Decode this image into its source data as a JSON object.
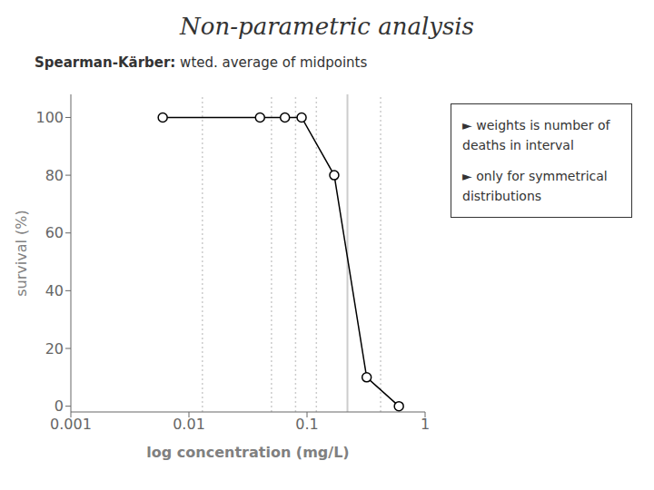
{
  "chart_data": {
    "type": "line",
    "title": "Non-parametric analysis",
    "subtitle": "Spearman-Kärber: wted. average of midpoints",
    "x_label": "log concentration (mg/L)",
    "y_label": "survival (%)",
    "x": [
      0.006,
      0.04,
      0.065,
      0.09,
      0.17,
      0.32,
      0.6
    ],
    "values": [
      100,
      100,
      100,
      100,
      80,
      10,
      0
    ],
    "color": "#000000",
    "marker": "circle",
    "line_style": "solid",
    "log": "x",
    "xlim": [
      0.001,
      1
    ],
    "xticks": [
      0.001,
      0.01,
      0.1,
      1
    ],
    "ylim": [
      -2,
      108
    ],
    "yticks": [
      0,
      20,
      40,
      60,
      80,
      100
    ],
    "grid": false,
    "reference_lines": [
      {
        "x": 0.013,
        "line_style": "dotted"
      },
      {
        "x": 0.05,
        "line_style": "dotted"
      },
      {
        "x": 0.08,
        "line_style": "dotted"
      },
      {
        "x": 0.12,
        "line_style": "dotted"
      },
      {
        "x": 0.22,
        "line_style": "solid"
      },
      {
        "x": 0.42,
        "line_style": "dotted"
      }
    ],
    "annotations": [
      "► weights is number of deaths in interval",
      "► only for symmetrical distributions"
    ]
  }
}
